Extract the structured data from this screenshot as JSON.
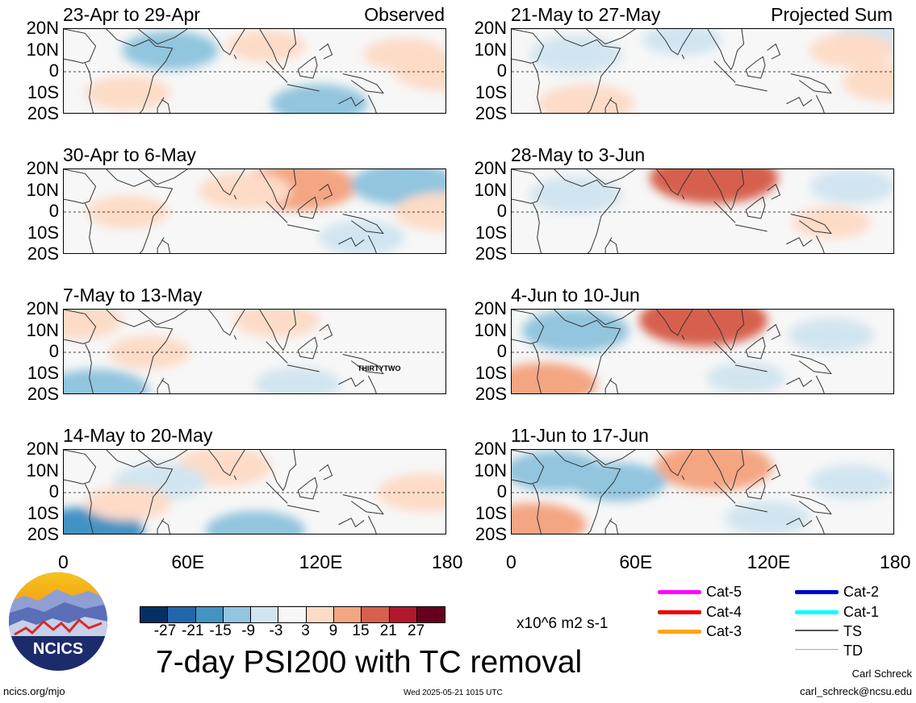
{
  "panels_left": [
    {
      "title": "23-Apr to 29-Apr",
      "tag": "Observed"
    },
    {
      "title": "30-Apr to 6-May",
      "tag": ""
    },
    {
      "title": "7-May to 13-May",
      "tag": ""
    },
    {
      "title": "14-May to 20-May",
      "tag": ""
    }
  ],
  "panels_right": [
    {
      "title": "21-May to 27-May",
      "tag": "Projected Sum"
    },
    {
      "title": "28-May to 3-Jun",
      "tag": ""
    },
    {
      "title": "4-Jun to 10-Jun",
      "tag": ""
    },
    {
      "title": "11-Jun to 17-Jun",
      "tag": ""
    }
  ],
  "storm_label": "THIRTYTWO",
  "lat_labels": [
    "20N",
    "10N",
    "0",
    "10S",
    "20S"
  ],
  "lon_labels": [
    "0",
    "60E",
    "120E",
    "180"
  ],
  "colorbar": {
    "ticks": [
      "-27",
      "-21",
      "-15",
      "-9",
      "-3",
      "3",
      "9",
      "15",
      "21",
      "27"
    ],
    "colors": [
      "#053061",
      "#2166ac",
      "#4393c3",
      "#92c5de",
      "#d1e5f0",
      "#f7f7f7",
      "#fddbc7",
      "#f4a582",
      "#d6604d",
      "#b2182b",
      "#67001f"
    ],
    "units": "x10^6 m2 s-1"
  },
  "title": "7-day PSI200 with TC removal",
  "legend": [
    {
      "label": "Cat-5",
      "color": "#ff00ff"
    },
    {
      "label": "Cat-4",
      "color": "#ee0000"
    },
    {
      "label": "Cat-3",
      "color": "#ffa500"
    },
    {
      "label": "Cat-2",
      "color": "#0000cd"
    },
    {
      "label": "Cat-1",
      "color": "#00ffff"
    },
    {
      "label": "TS",
      "color": "#555555"
    },
    {
      "label": "TD",
      "color": "#aaaaaa"
    }
  ],
  "logo_text": "NCICS",
  "footer": {
    "site": "ncics.org/mjo",
    "timestamp": "Wed 2025-05-21 1015 UTC",
    "author": "Carl Schreck",
    "email": "carl_schreck@ncsu.edu"
  },
  "chart_data": [
    {
      "type": "heatmap",
      "title": "23-Apr to 29-Apr",
      "subtitle": "Observed",
      "x_range": [
        0,
        180
      ],
      "y_range": [
        -20,
        20
      ],
      "blobs": [
        {
          "lon": 50,
          "lat": 10,
          "value": -9
        },
        {
          "lon": 120,
          "lat": -15,
          "value": -9
        },
        {
          "lon": 30,
          "lat": -10,
          "value": 6
        },
        {
          "lon": 95,
          "lat": 12,
          "value": 4
        },
        {
          "lon": 160,
          "lat": 8,
          "value": 5
        },
        {
          "lon": 178,
          "lat": 0,
          "value": 9
        }
      ]
    },
    {
      "type": "heatmap",
      "title": "30-Apr to 6-May",
      "x_range": [
        0,
        180
      ],
      "y_range": [
        -20,
        20
      ],
      "blobs": [
        {
          "lon": 110,
          "lat": 12,
          "value": 15
        },
        {
          "lon": 85,
          "lat": 10,
          "value": 8
        },
        {
          "lon": 160,
          "lat": 13,
          "value": -12
        },
        {
          "lon": 140,
          "lat": -12,
          "value": -6
        },
        {
          "lon": 30,
          "lat": 0,
          "value": 5
        },
        {
          "lon": 178,
          "lat": 0,
          "value": 9
        }
      ]
    },
    {
      "type": "heatmap",
      "title": "7-May to 13-May",
      "x_range": [
        0,
        180
      ],
      "y_range": [
        -20,
        20
      ],
      "blobs": [
        {
          "lon": 5,
          "lat": 15,
          "value": 9
        },
        {
          "lon": 100,
          "lat": 15,
          "value": 6
        },
        {
          "lon": 15,
          "lat": -18,
          "value": -12
        },
        {
          "lon": 110,
          "lat": -15,
          "value": -6
        },
        {
          "lon": 40,
          "lat": 0,
          "value": 5
        }
      ]
    },
    {
      "type": "heatmap",
      "title": "14-May to 20-May",
      "x_range": [
        0,
        180
      ],
      "y_range": [
        -20,
        20
      ],
      "blobs": [
        {
          "lon": 75,
          "lat": 12,
          "value": 9
        },
        {
          "lon": 45,
          "lat": 5,
          "value": -8
        },
        {
          "lon": 90,
          "lat": -18,
          "value": -10
        },
        {
          "lon": 10,
          "lat": -18,
          "value": -15
        },
        {
          "lon": 170,
          "lat": 0,
          "value": 9
        },
        {
          "lon": 30,
          "lat": -5,
          "value": 6
        }
      ]
    },
    {
      "type": "heatmap",
      "title": "21-May to 27-May",
      "subtitle": "Projected Sum",
      "x_range": [
        0,
        180
      ],
      "y_range": [
        -20,
        20
      ],
      "blobs": [
        {
          "lon": 30,
          "lat": 8,
          "value": -8
        },
        {
          "lon": 170,
          "lat": 15,
          "value": -6
        },
        {
          "lon": 160,
          "lat": 10,
          "value": 6
        },
        {
          "lon": 35,
          "lat": -15,
          "value": 9
        },
        {
          "lon": 178,
          "lat": -5,
          "value": 9
        },
        {
          "lon": 80,
          "lat": 15,
          "value": -4
        }
      ]
    },
    {
      "type": "heatmap",
      "title": "28-May to 3-Jun",
      "x_range": [
        0,
        180
      ],
      "y_range": [
        -20,
        20
      ],
      "blobs": [
        {
          "lon": 95,
          "lat": 16,
          "value": 18
        },
        {
          "lon": 30,
          "lat": 8,
          "value": -8
        },
        {
          "lon": 160,
          "lat": 12,
          "value": -6
        },
        {
          "lon": 150,
          "lat": -5,
          "value": 4
        }
      ]
    },
    {
      "type": "heatmap",
      "title": "4-Jun to 10-Jun",
      "x_range": [
        0,
        180
      ],
      "y_range": [
        -20,
        20
      ],
      "blobs": [
        {
          "lon": 90,
          "lat": 15,
          "value": 18
        },
        {
          "lon": 30,
          "lat": 10,
          "value": -12
        },
        {
          "lon": 15,
          "lat": -15,
          "value": 12
        },
        {
          "lon": 150,
          "lat": 8,
          "value": -6
        },
        {
          "lon": 110,
          "lat": -12,
          "value": -4
        }
      ]
    },
    {
      "type": "heatmap",
      "title": "11-Jun to 17-Jun",
      "x_range": [
        0,
        180
      ],
      "y_range": [
        -20,
        20
      ],
      "blobs": [
        {
          "lon": 95,
          "lat": 12,
          "value": 15
        },
        {
          "lon": 20,
          "lat": 10,
          "value": -10
        },
        {
          "lon": 50,
          "lat": 5,
          "value": -9
        },
        {
          "lon": 10,
          "lat": -15,
          "value": 12
        },
        {
          "lon": 160,
          "lat": 5,
          "value": -6
        },
        {
          "lon": 120,
          "lat": -12,
          "value": -6
        }
      ]
    }
  ]
}
